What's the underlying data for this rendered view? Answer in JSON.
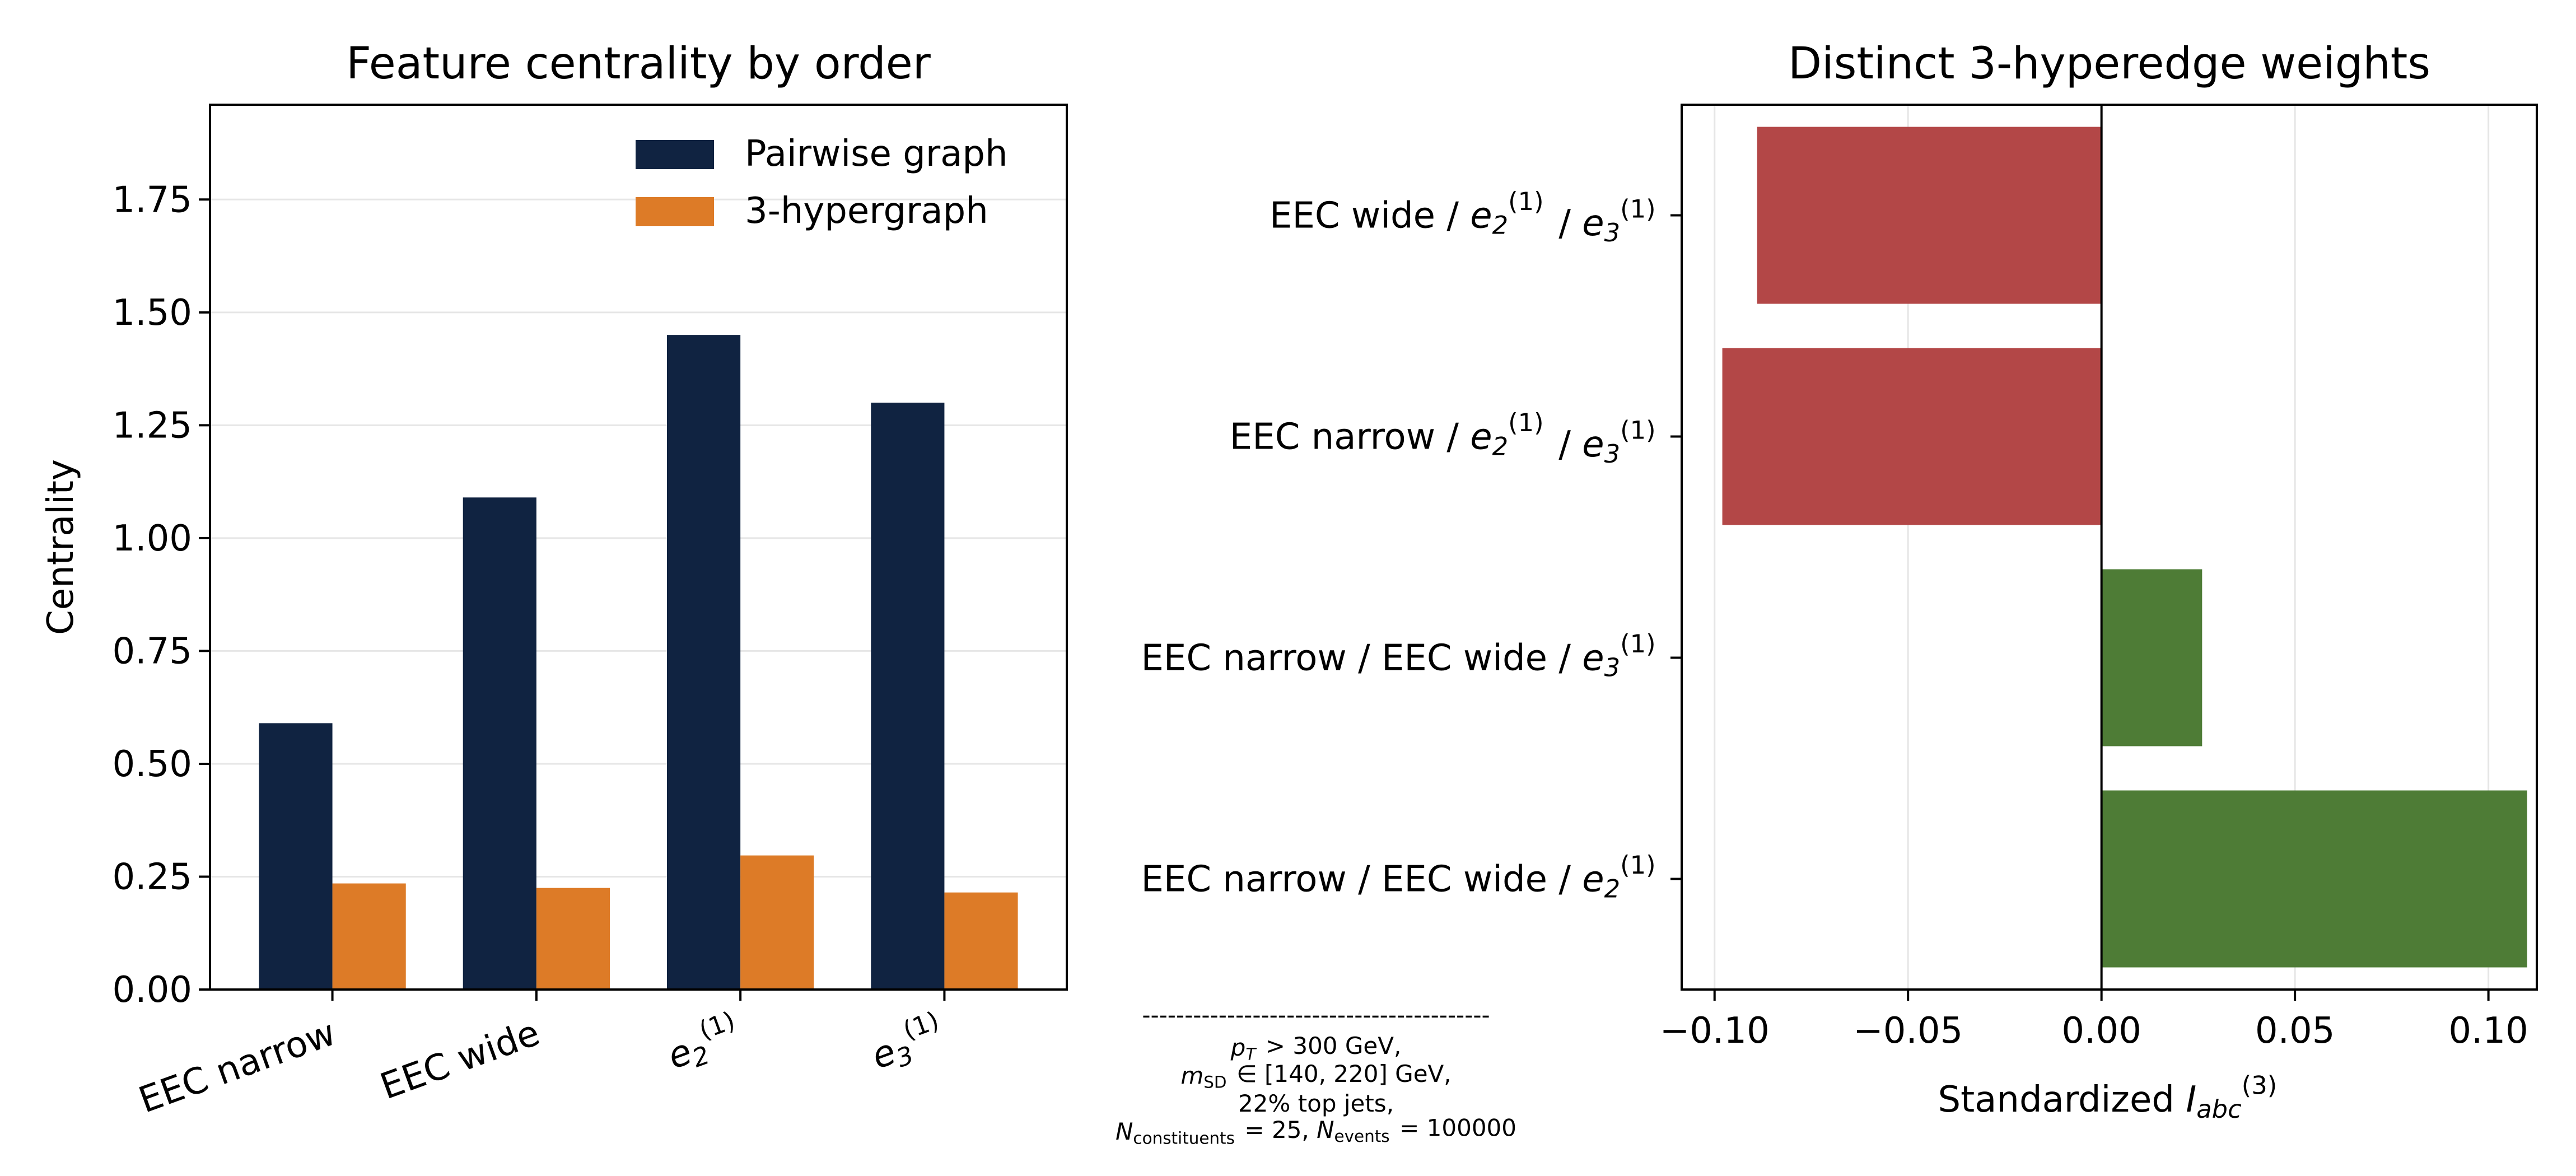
{
  "colors": {
    "pairwise": "#102341",
    "hypergraph": "#dd7b27",
    "negative": "#b34747",
    "positive": "#4e7c36",
    "grid": "#e6e6e6",
    "axis": "#000000"
  },
  "chart_data": [
    {
      "type": "bar",
      "title": "Feature centrality by order",
      "ylabel": "Centrality",
      "xlabel": "",
      "ylim": [
        0,
        1.96
      ],
      "yticks": [
        0.0,
        0.25,
        0.5,
        0.75,
        1.0,
        1.25,
        1.5,
        1.75
      ],
      "ytick_labels": [
        "0.00",
        "0.25",
        "0.50",
        "0.75",
        "1.00",
        "1.25",
        "1.50",
        "1.75"
      ],
      "grid": "horizontal",
      "legend_position": "top-right",
      "categories": [
        {
          "text": "EEC narrow",
          "sub": "",
          "sup": ""
        },
        {
          "text": "EEC wide",
          "sub": "",
          "sup": ""
        },
        {
          "text": "e",
          "sub": "2",
          "sup": "(1)"
        },
        {
          "text": "e",
          "sub": "3",
          "sup": "(1)"
        }
      ],
      "series": [
        {
          "name": "Pairwise graph",
          "color_key": "pairwise",
          "values": [
            0.59,
            1.09,
            1.45,
            1.3
          ]
        },
        {
          "name": "3-hypergraph",
          "color_key": "hypergraph",
          "values": [
            0.235,
            0.225,
            0.297,
            0.215
          ]
        }
      ]
    },
    {
      "type": "bar",
      "orientation": "horizontal",
      "title": "Distinct 3-hyperedge weights",
      "xlabel": {
        "text": "Standardized ",
        "var": "I",
        "sub": "abc",
        "sup": "(3)"
      },
      "xlim": [
        -0.1085,
        0.1125
      ],
      "xticks": [
        -0.1,
        -0.05,
        0.0,
        0.05,
        0.1
      ],
      "xtick_labels": [
        "−0.10",
        "−0.05",
        "0.00",
        "0.05",
        "0.10"
      ],
      "grid": "vertical",
      "categories": [
        [
          {
            "t": "EEC wide / "
          },
          {
            "v": "e",
            "sub": "2",
            "sup": "(1)"
          },
          {
            "t": " / "
          },
          {
            "v": "e",
            "sub": "3",
            "sup": "(1)"
          }
        ],
        [
          {
            "t": "EEC narrow / "
          },
          {
            "v": "e",
            "sub": "2",
            "sup": "(1)"
          },
          {
            "t": " / "
          },
          {
            "v": "e",
            "sub": "3",
            "sup": "(1)"
          }
        ],
        [
          {
            "t": "EEC narrow / EEC wide / "
          },
          {
            "v": "e",
            "sub": "3",
            "sup": "(1)"
          }
        ],
        [
          {
            "t": "EEC narrow / EEC wide / "
          },
          {
            "v": "e",
            "sub": "2",
            "sup": "(1)"
          }
        ]
      ],
      "values": [
        -0.089,
        -0.098,
        0.026,
        0.11
      ]
    }
  ],
  "annotation": {
    "divider": "-----------------------------------------",
    "lines": [
      [
        {
          "v": "p",
          "sub": "T"
        },
        {
          "t": " > 300 GeV,"
        }
      ],
      [
        {
          "v": "m",
          "sub": "SD",
          "subRoman": true
        },
        {
          "t": " ∈ [140, 220] GeV,"
        }
      ],
      [
        {
          "t": "22% top jets,"
        }
      ],
      [
        {
          "v": "N",
          "sub": "constituents",
          "subRoman": true
        },
        {
          "t": " = 25, "
        },
        {
          "v": "N",
          "sub": "events",
          "subRoman": true
        },
        {
          "t": " = 100000"
        }
      ]
    ]
  }
}
